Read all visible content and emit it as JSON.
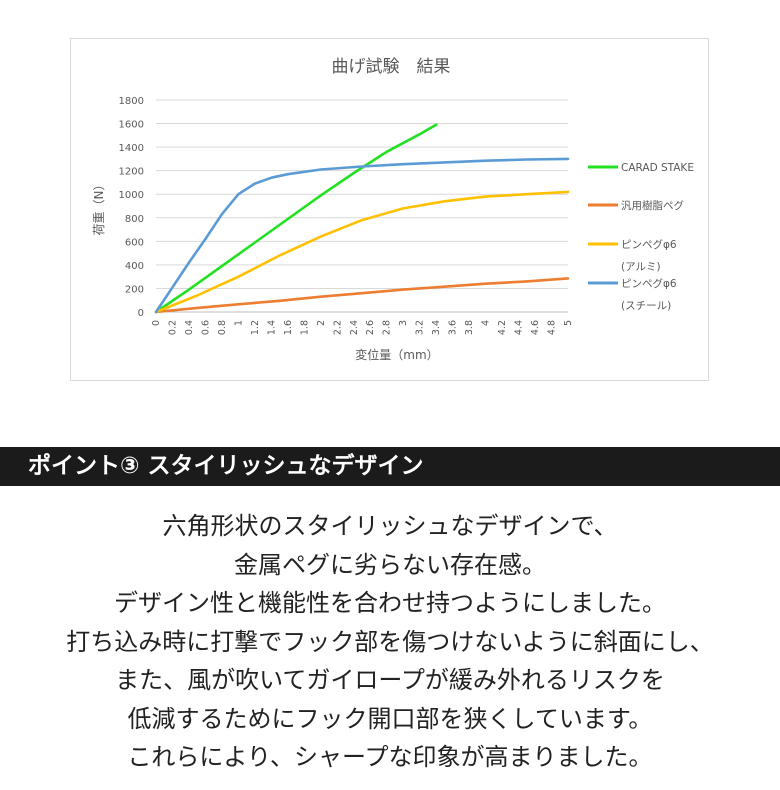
{
  "chart_data": {
    "type": "line",
    "title": "曲げ試験　結果",
    "xlabel": "変位量（mm）",
    "ylabel": "荷重（N）",
    "xlim": [
      0,
      5
    ],
    "ylim": [
      0,
      1800
    ],
    "x_ticks": [
      "0",
      "0.2",
      "0.4",
      "0.6",
      "0.8",
      "1",
      "1.2",
      "1.4",
      "1.6",
      "1.8",
      "2",
      "2.2",
      "2.4",
      "2.6",
      "2.8",
      "3",
      "3.2",
      "3.4",
      "3.6",
      "3.8",
      "4",
      "4.2",
      "4.4",
      "4.6",
      "4.8",
      "5"
    ],
    "y_ticks": [
      "0",
      "200",
      "400",
      "600",
      "800",
      "1000",
      "1200",
      "1400",
      "1600",
      "1800"
    ],
    "grid": "horizontal",
    "legend_position": "right",
    "series": [
      {
        "name": "CARAD STAKE",
        "color": "#22e022",
        "x": [
          0,
          0.4,
          0.8,
          1.2,
          1.6,
          2.0,
          2.4,
          2.8,
          3.2,
          3.4
        ],
        "y": [
          0,
          190,
          390,
          590,
          790,
          990,
          1180,
          1360,
          1510,
          1590
        ]
      },
      {
        "name": "汎用樹脂ペグ",
        "color": "#ed7d31",
        "x": [
          0,
          0.5,
          1.0,
          1.5,
          2.0,
          2.5,
          3.0,
          3.5,
          4.0,
          4.5,
          5.0
        ],
        "y": [
          0,
          35,
          65,
          95,
          130,
          160,
          190,
          215,
          240,
          260,
          285
        ]
      },
      {
        "name": "ピンペグφ6",
        "name_line2": "(アルミ)",
        "color": "#ffc000",
        "x": [
          0,
          0.5,
          1.0,
          1.5,
          2.0,
          2.5,
          3.0,
          3.5,
          4.0,
          4.5,
          5.0
        ],
        "y": [
          0,
          140,
          300,
          480,
          640,
          780,
          880,
          940,
          980,
          1000,
          1020
        ]
      },
      {
        "name": "ピンペグφ6",
        "name_line2": "(スチール)",
        "color": "#5b9bd5",
        "x": [
          0,
          0.2,
          0.4,
          0.6,
          0.8,
          1.0,
          1.2,
          1.4,
          1.6,
          2.0,
          2.5,
          3.0,
          3.5,
          4.0,
          4.5,
          5.0
        ],
        "y": [
          0,
          210,
          420,
          620,
          830,
          1000,
          1090,
          1140,
          1170,
          1210,
          1235,
          1255,
          1270,
          1285,
          1295,
          1300
        ]
      }
    ]
  },
  "section": {
    "title": "ポイント③ スタイリッシュなデザイン"
  },
  "description": {
    "lines": [
      "六角形状のスタイリッシュなデザインで、",
      "金属ペグに劣らない存在感。",
      "デザイン性と機能性を合わせ持つようにしました。",
      "打ち込み時に打撃でフック部を傷つけないように斜面にし、",
      "また、風が吹いてガイロープが緩み外れるリスクを",
      "低減するためにフック開口部を狭くしています。",
      "これらにより、シャープな印象が高まりました。"
    ]
  }
}
